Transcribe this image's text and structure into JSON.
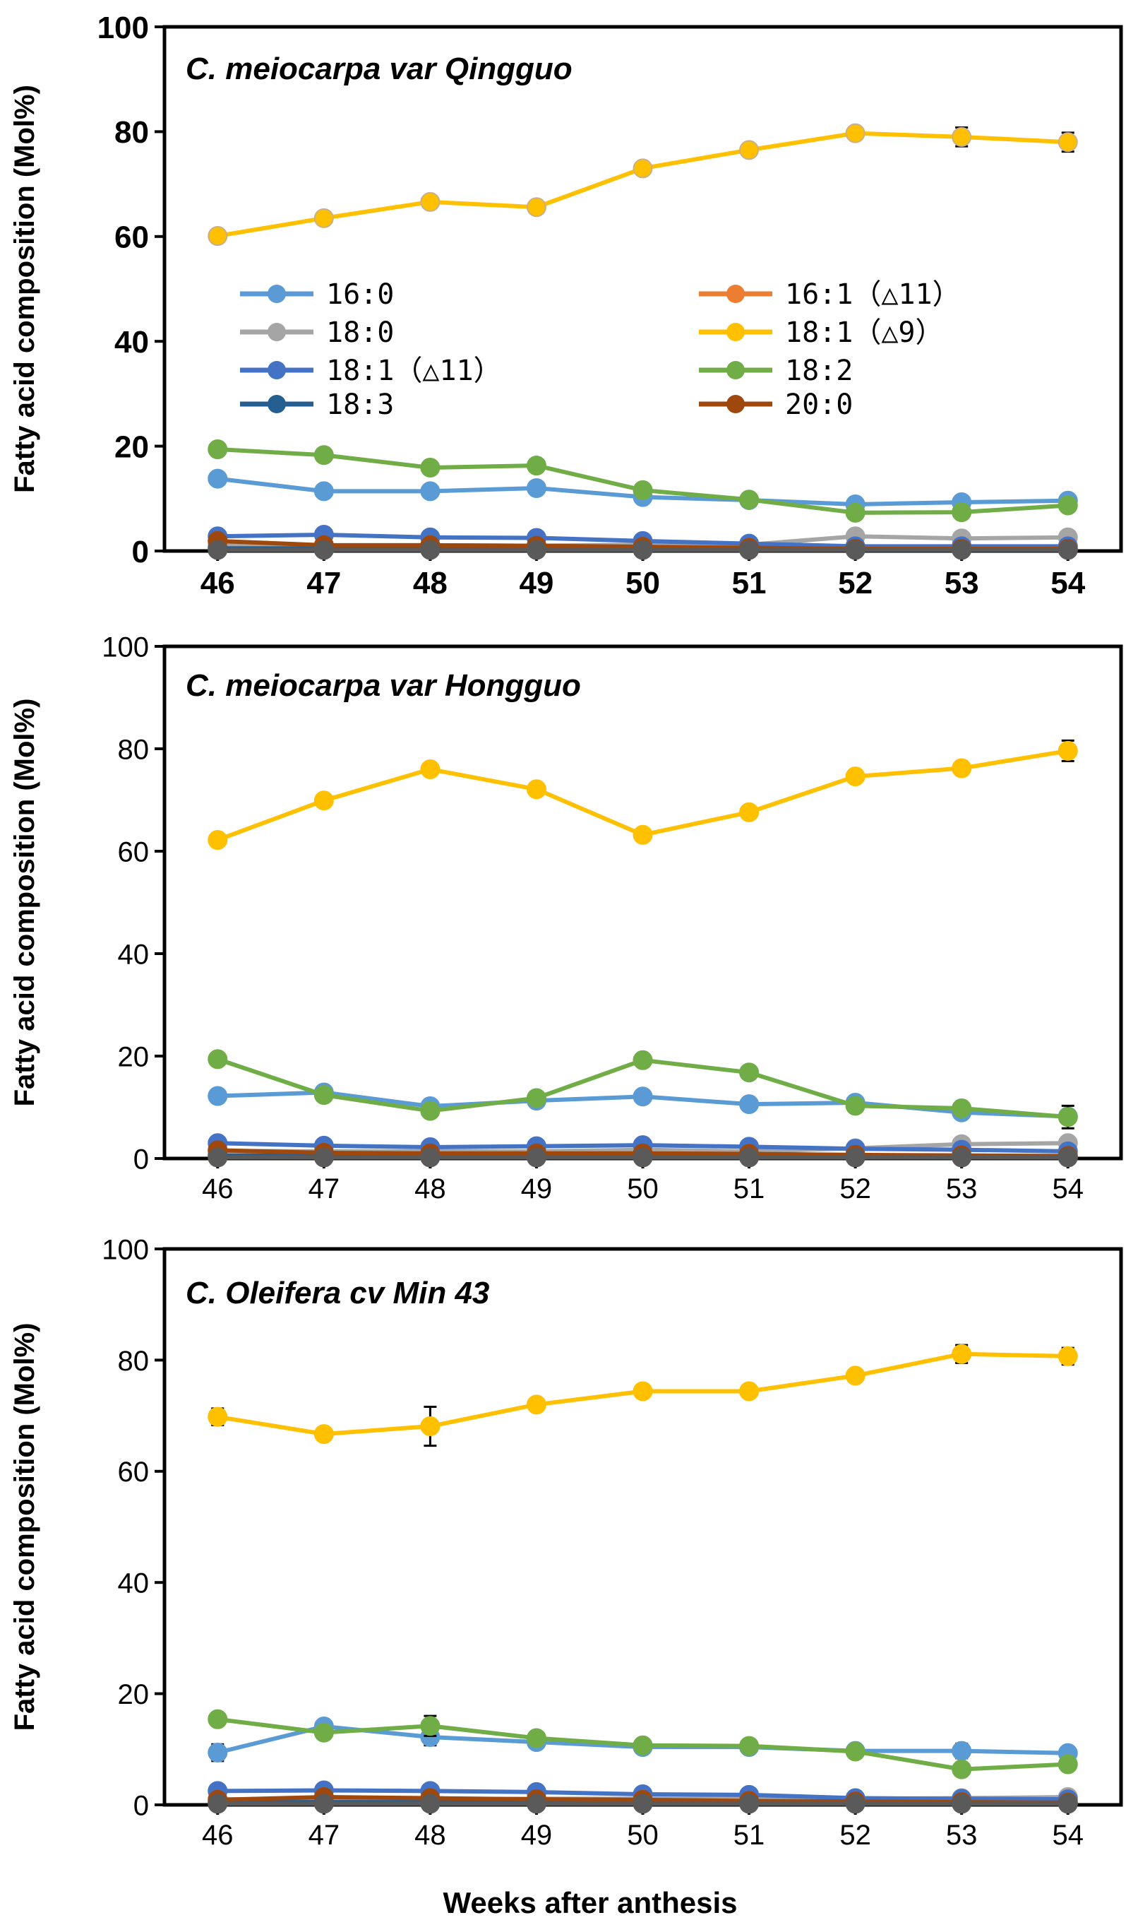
{
  "figure": {
    "xlabel": "Weeks after anthesis"
  },
  "legend": [
    {
      "label": "16:0",
      "color": "#5B9BD5"
    },
    {
      "label": "16:1（△11）",
      "color": "#ED7D31"
    },
    {
      "label": "18:0",
      "color": "#A5A5A5"
    },
    {
      "label": "18:1（△9）",
      "color": "#FFC000"
    },
    {
      "label": "18:1（△11）",
      "color": "#4472C4"
    },
    {
      "label": "18:2",
      "color": "#70AD47"
    },
    {
      "label": "18:3",
      "color": "#255E91"
    },
    {
      "label": "20:0",
      "color": "#9E480E"
    }
  ],
  "chart_data": [
    {
      "type": "line",
      "title": "C. meiocarpa var Qingguo",
      "xlabel": "",
      "ylabel": "Fatty acid composition (Mol%)",
      "categories": [
        46,
        47,
        48,
        49,
        50,
        51,
        52,
        53,
        54
      ],
      "ylim": [
        0,
        100
      ],
      "yticks": [
        0,
        20,
        40,
        60,
        80,
        100
      ],
      "series": [
        {
          "name": "16:0",
          "color": "#5B9BD5",
          "values": [
            13.8,
            11.4,
            11.4,
            12.0,
            10.3,
            9.7,
            8.9,
            9.3,
            9.6
          ]
        },
        {
          "name": "16:1（△11）",
          "color": "#ED7D31",
          "values": [
            0.5,
            0.5,
            0.4,
            0.4,
            0.4,
            0.3,
            0.3,
            0.3,
            0.3
          ]
        },
        {
          "name": "18:0",
          "color": "#A5A5A5",
          "values": [
            1.0,
            1.1,
            1.1,
            1.0,
            1.2,
            1.2,
            2.8,
            2.4,
            2.6
          ]
        },
        {
          "name": "18:1（△9）",
          "color": "#FFC000",
          "values": [
            60.1,
            63.5,
            66.6,
            65.6,
            73.0,
            76.5,
            79.7,
            79.0,
            78.0
          ],
          "errors": [
            0.5,
            0.5,
            0.5,
            0.5,
            0.5,
            0.5,
            0.5,
            1.8,
            1.8
          ]
        },
        {
          "name": "18:1（△11）",
          "color": "#4472C4",
          "values": [
            2.8,
            3.1,
            2.6,
            2.5,
            1.9,
            1.4,
            0.9,
            0.9,
            0.9
          ]
        },
        {
          "name": "18:2",
          "color": "#70AD47",
          "values": [
            19.4,
            18.3,
            15.9,
            16.3,
            11.6,
            9.8,
            7.3,
            7.4,
            8.7
          ],
          "errors": [
            0,
            0,
            0,
            0,
            0,
            0,
            0,
            0,
            1.2
          ]
        },
        {
          "name": "18:3",
          "color": "#255E91",
          "values": [
            0.5,
            0.5,
            0.5,
            0.5,
            0.4,
            0.3,
            0.3,
            0.3,
            0.3
          ]
        },
        {
          "name": "20:0",
          "color": "#9E480E",
          "values": [
            1.9,
            1.1,
            1.1,
            1.0,
            0.8,
            0.6,
            0.4,
            0.4,
            0.4
          ]
        }
      ],
      "overlay": {
        "name": "gray-dark",
        "color": "#5A5A5A",
        "values": [
          0.2,
          0.2,
          0.2,
          0.2,
          0.2,
          0.2,
          0.2,
          0.2,
          0.2
        ]
      }
    },
    {
      "type": "line",
      "title": "C. meiocarpa var Hongguo",
      "xlabel": "",
      "ylabel": "Fatty acid composition (Mol%)",
      "categories": [
        46,
        47,
        48,
        49,
        50,
        51,
        52,
        53,
        54
      ],
      "ylim": [
        0,
        100
      ],
      "yticks": [
        0,
        20,
        40,
        60,
        80,
        100
      ],
      "series": [
        {
          "name": "16:0",
          "color": "#5B9BD5",
          "values": [
            12.2,
            12.9,
            10.2,
            11.3,
            12.1,
            10.6,
            10.9,
            9.0,
            8.2
          ]
        },
        {
          "name": "16:1（△11）",
          "color": "#ED7D31",
          "values": [
            0.6,
            0.6,
            0.5,
            0.5,
            0.5,
            0.4,
            0.3,
            0.3,
            0.3
          ]
        },
        {
          "name": "18:0",
          "color": "#A5A5A5",
          "values": [
            1.5,
            1.4,
            1.4,
            1.4,
            1.7,
            1.4,
            2.0,
            2.8,
            3.0
          ]
        },
        {
          "name": "18:1（△9）",
          "color": "#FFC000",
          "values": [
            62.2,
            69.9,
            76.0,
            72.1,
            63.2,
            67.6,
            74.6,
            76.2,
            79.6
          ],
          "errors": [
            1.0,
            0.5,
            0.5,
            0.5,
            0.5,
            0.5,
            0.5,
            1.3,
            2.0
          ]
        },
        {
          "name": "18:1（△11）",
          "color": "#4472C4",
          "values": [
            3.0,
            2.5,
            2.2,
            2.4,
            2.6,
            2.3,
            1.9,
            1.7,
            1.4
          ]
        },
        {
          "name": "18:2",
          "color": "#70AD47",
          "values": [
            19.4,
            12.4,
            9.3,
            11.8,
            19.2,
            16.8,
            10.3,
            9.8,
            8.1
          ],
          "errors": [
            0,
            0,
            0,
            0,
            0,
            0,
            0,
            0,
            2.2
          ]
        },
        {
          "name": "18:3",
          "color": "#255E91",
          "values": [
            0.6,
            0.5,
            0.5,
            0.5,
            0.5,
            0.4,
            0.3,
            0.3,
            0.3
          ]
        },
        {
          "name": "20:0",
          "color": "#9E480E",
          "values": [
            1.6,
            1.1,
            1.0,
            1.0,
            1.0,
            0.9,
            0.7,
            0.6,
            0.5
          ]
        }
      ],
      "overlay": {
        "name": "gray-dark",
        "color": "#5A5A5A",
        "values": [
          0.2,
          0.2,
          0.2,
          0.2,
          0.2,
          0.2,
          0.2,
          0.2,
          0.2
        ]
      }
    },
    {
      "type": "line",
      "title": "C. Oleifera cv Min 43",
      "xlabel": "Weeks after anthesis",
      "ylabel": "Fatty acid composition (Mol%)",
      "categories": [
        46,
        47,
        48,
        49,
        50,
        51,
        52,
        53,
        54
      ],
      "ylim": [
        0,
        100
      ],
      "yticks": [
        0,
        20,
        40,
        60,
        80,
        100
      ],
      "series": [
        {
          "name": "16:0",
          "color": "#5B9BD5",
          "values": [
            9.4,
            14.1,
            12.2,
            11.3,
            10.4,
            10.4,
            9.7,
            9.7,
            9.3
          ],
          "errors": [
            1.5,
            0,
            1.5,
            0,
            0,
            0,
            0,
            1.3,
            1.0
          ]
        },
        {
          "name": "16:1（△11）",
          "color": "#ED7D31",
          "values": [
            0.5,
            0.5,
            0.5,
            0.4,
            0.4,
            0.4,
            0.3,
            0.3,
            0.3
          ]
        },
        {
          "name": "18:0",
          "color": "#A5A5A5",
          "values": [
            1.0,
            1.0,
            1.0,
            1.1,
            1.1,
            1.1,
            1.1,
            1.2,
            1.4
          ]
        },
        {
          "name": "18:1（△9）",
          "color": "#FFC000",
          "values": [
            69.8,
            66.7,
            68.1,
            72.0,
            74.4,
            74.4,
            77.2,
            81.1,
            80.7
          ],
          "errors": [
            1.5,
            0.5,
            3.5,
            0.5,
            0.5,
            0.5,
            1.0,
            1.6,
            1.5
          ]
        },
        {
          "name": "18:1（△11）",
          "color": "#4472C4",
          "values": [
            2.5,
            2.6,
            2.5,
            2.3,
            1.9,
            1.8,
            1.2,
            1.1,
            1.0
          ]
        },
        {
          "name": "18:2",
          "color": "#70AD47",
          "values": [
            15.4,
            13.0,
            14.2,
            12.0,
            10.7,
            10.6,
            9.6,
            6.4,
            7.3
          ],
          "errors": [
            0,
            0,
            1.8,
            0,
            0,
            0,
            0,
            0,
            0
          ]
        },
        {
          "name": "18:3",
          "color": "#255E91",
          "values": [
            0.5,
            0.5,
            0.5,
            0.5,
            0.4,
            0.4,
            0.3,
            0.3,
            0.3
          ]
        },
        {
          "name": "20:0",
          "color": "#9E480E",
          "values": [
            0.9,
            1.4,
            1.2,
            1.0,
            0.9,
            0.7,
            0.6,
            0.5,
            0.4
          ]
        }
      ],
      "overlay": {
        "name": "gray-dark",
        "color": "#5A5A5A",
        "values": [
          0.2,
          0.2,
          0.2,
          0.2,
          0.2,
          0.2,
          0.2,
          0.2,
          0.2
        ]
      }
    }
  ]
}
